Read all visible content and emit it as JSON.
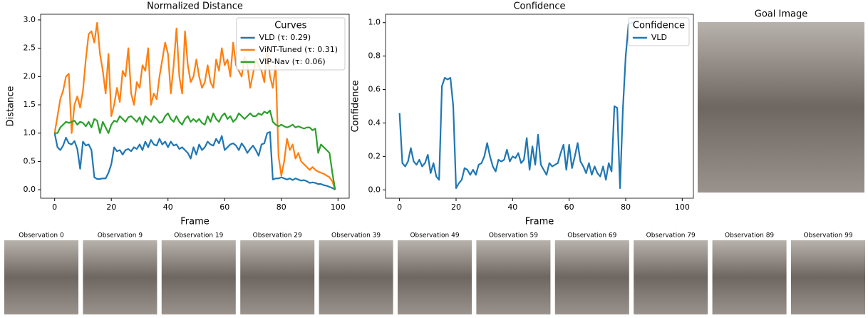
{
  "chart_data": [
    {
      "type": "line",
      "title": "Normalized Distance",
      "x_label": "Frame",
      "y_label": "Distance",
      "legend_title": "Curves",
      "legend": "upper right",
      "x": [
        0,
        1,
        2,
        3,
        4,
        5,
        6,
        7,
        8,
        9,
        10,
        11,
        12,
        13,
        14,
        15,
        16,
        17,
        18,
        19,
        20,
        21,
        22,
        23,
        24,
        25,
        26,
        27,
        28,
        29,
        30,
        31,
        32,
        33,
        34,
        35,
        36,
        37,
        38,
        39,
        40,
        41,
        42,
        43,
        44,
        45,
        46,
        47,
        48,
        49,
        50,
        51,
        52,
        53,
        54,
        55,
        56,
        57,
        58,
        59,
        60,
        61,
        62,
        63,
        64,
        65,
        66,
        67,
        68,
        69,
        70,
        71,
        72,
        73,
        74,
        75,
        76,
        77,
        78,
        79,
        80,
        81,
        82,
        83,
        84,
        85,
        86,
        87,
        88,
        89,
        90,
        91,
        92,
        93,
        94,
        95,
        96,
        97,
        98,
        99
      ],
      "series": [
        {
          "name": "VLD (τ: 0.29)",
          "color": "#1f77b4",
          "values": [
            1.0,
            0.75,
            0.7,
            0.78,
            0.92,
            0.82,
            0.8,
            0.86,
            0.72,
            0.37,
            0.85,
            0.78,
            0.8,
            0.7,
            0.22,
            0.19,
            0.19,
            0.2,
            0.2,
            0.3,
            0.45,
            0.75,
            0.68,
            0.7,
            0.62,
            0.7,
            0.72,
            0.68,
            0.75,
            0.72,
            0.8,
            0.7,
            0.85,
            0.75,
            0.88,
            0.8,
            0.78,
            0.9,
            0.8,
            0.85,
            0.75,
            0.85,
            0.78,
            0.8,
            0.72,
            0.75,
            0.7,
            0.65,
            0.55,
            0.75,
            0.62,
            0.8,
            0.7,
            0.75,
            0.85,
            0.8,
            0.78,
            0.9,
            0.82,
            0.95,
            0.7,
            0.75,
            0.8,
            0.82,
            0.78,
            0.7,
            0.82,
            0.75,
            0.65,
            0.72,
            0.78,
            0.7,
            0.6,
            0.8,
            0.82,
            1.0,
            1.02,
            0.18,
            0.2,
            0.2,
            0.22,
            0.2,
            0.18,
            0.2,
            0.17,
            0.2,
            0.18,
            0.16,
            0.17,
            0.15,
            0.12,
            0.13,
            0.12,
            0.1,
            0.1,
            0.08,
            0.07,
            0.05,
            0.03,
            0.0
          ]
        },
        {
          "name": "ViNT-Tuned (τ: 0.31)",
          "color": "#ff7f0e",
          "values": [
            1.0,
            1.3,
            1.6,
            1.75,
            2.0,
            2.05,
            1.0,
            1.5,
            1.65,
            1.45,
            1.75,
            2.3,
            2.75,
            2.8,
            2.6,
            2.95,
            2.4,
            2.1,
            1.7,
            2.4,
            1.3,
            1.5,
            1.8,
            1.55,
            2.1,
            2.0,
            2.5,
            1.7,
            1.5,
            1.9,
            1.8,
            2.2,
            2.1,
            2.5,
            1.5,
            1.7,
            1.6,
            2.0,
            2.3,
            2.6,
            2.4,
            1.7,
            2.2,
            2.85,
            2.0,
            1.7,
            2.8,
            2.2,
            1.9,
            2.0,
            2.3,
            2.0,
            1.8,
            1.9,
            2.2,
            1.9,
            1.8,
            2.3,
            2.1,
            2.5,
            2.2,
            2.3,
            2.0,
            2.6,
            2.2,
            2.1,
            2.0,
            2.35,
            2.2,
            1.8,
            2.05,
            2.3,
            2.2,
            2.1,
            1.9,
            2.5,
            2.0,
            1.8,
            2.2,
            0.6,
            0.25,
            0.5,
            0.9,
            0.7,
            0.8,
            0.55,
            0.65,
            0.5,
            0.45,
            0.4,
            0.35,
            0.4,
            0.35,
            0.32,
            0.3,
            0.28,
            0.25,
            0.22,
            0.15,
            0.0
          ]
        },
        {
          "name": "VIP-Nav (τ: 0.06)",
          "color": "#2ca02c",
          "values": [
            1.0,
            1.0,
            1.1,
            1.15,
            1.2,
            1.18,
            1.2,
            1.22,
            1.15,
            1.2,
            1.18,
            1.12,
            1.2,
            1.1,
            1.25,
            1.22,
            1.0,
            1.2,
            1.1,
            1.0,
            1.15,
            1.22,
            1.2,
            1.3,
            1.25,
            1.2,
            1.28,
            1.3,
            1.25,
            1.2,
            1.28,
            1.15,
            1.3,
            1.25,
            1.2,
            1.3,
            1.25,
            1.18,
            1.2,
            1.3,
            1.35,
            1.25,
            1.2,
            1.3,
            1.2,
            1.15,
            1.25,
            1.3,
            1.2,
            1.25,
            1.2,
            1.25,
            1.18,
            1.15,
            1.3,
            1.2,
            1.35,
            1.25,
            1.2,
            1.3,
            1.35,
            1.25,
            1.3,
            1.2,
            1.25,
            1.35,
            1.3,
            1.25,
            1.3,
            1.35,
            1.3,
            1.3,
            1.35,
            1.32,
            1.38,
            1.35,
            1.4,
            1.2,
            1.15,
            1.12,
            1.15,
            1.12,
            1.1,
            1.12,
            1.15,
            1.1,
            1.12,
            1.1,
            1.08,
            1.1,
            1.1,
            1.05,
            1.08,
            0.65,
            0.8,
            0.75,
            0.7,
            0.65,
            0.3,
            0.0
          ]
        }
      ],
      "xlim": [
        -4.95,
        103.95
      ],
      "xticks": [
        0,
        20,
        40,
        60,
        80,
        100
      ],
      "ylim": [
        -0.15,
        3.1
      ],
      "yticks": [
        {
          "value": 0,
          "label": "0.0"
        },
        {
          "value": 0.5,
          "label": "0.5"
        },
        {
          "value": 1,
          "label": "1.0"
        },
        {
          "value": 1.5,
          "label": "1.5"
        },
        {
          "value": 2,
          "label": "2.0"
        },
        {
          "value": 2.5,
          "label": "2.5"
        },
        {
          "value": 3,
          "label": "3.0"
        }
      ]
    },
    {
      "type": "line",
      "title": "Confidence",
      "x_label": "Frame",
      "y_label": "Confidence",
      "legend_title": "Confidence",
      "legend": "upper right",
      "x": [
        0,
        1,
        2,
        3,
        4,
        5,
        6,
        7,
        8,
        9,
        10,
        11,
        12,
        13,
        14,
        15,
        16,
        17,
        18,
        19,
        20,
        21,
        22,
        23,
        24,
        25,
        26,
        27,
        28,
        29,
        30,
        31,
        32,
        33,
        34,
        35,
        36,
        37,
        38,
        39,
        40,
        41,
        42,
        43,
        44,
        45,
        46,
        47,
        48,
        49,
        50,
        51,
        52,
        53,
        54,
        55,
        56,
        57,
        58,
        59,
        60,
        61,
        62,
        63,
        64,
        65,
        66,
        67,
        68,
        69,
        70,
        71,
        72,
        73,
        74,
        75,
        76,
        77,
        78,
        79,
        80,
        81,
        82,
        83
      ],
      "series": [
        {
          "name": "VLD",
          "color": "#1f77b4",
          "values": [
            0.46,
            0.16,
            0.14,
            0.17,
            0.25,
            0.17,
            0.15,
            0.18,
            0.14,
            0.16,
            0.21,
            0.1,
            0.16,
            0.08,
            0.06,
            0.62,
            0.67,
            0.66,
            0.67,
            0.5,
            0.01,
            0.04,
            0.06,
            0.13,
            0.12,
            0.09,
            0.12,
            0.09,
            0.15,
            0.16,
            0.2,
            0.28,
            0.2,
            0.14,
            0.11,
            0.18,
            0.17,
            0.18,
            0.24,
            0.17,
            0.2,
            0.19,
            0.22,
            0.16,
            0.18,
            0.31,
            0.12,
            0.26,
            0.15,
            0.33,
            0.15,
            0.12,
            0.09,
            0.16,
            0.14,
            0.15,
            0.16,
            0.22,
            0.27,
            0.12,
            0.27,
            0.13,
            0.2,
            0.28,
            0.17,
            0.14,
            0.1,
            0.16,
            0.09,
            0.14,
            0.1,
            0.08,
            0.14,
            0.06,
            0.16,
            0.11,
            0.5,
            0.49,
            0.01,
            0.48,
            0.8,
            0.99,
            1.0,
            1.0
          ]
        }
      ],
      "xlim": [
        -4.95,
        103.95
      ],
      "xticks": [
        0,
        20,
        40,
        60,
        80,
        100
      ],
      "ylim": [
        -0.05,
        1.05
      ],
      "yticks": [
        {
          "value": 0,
          "label": "0.0"
        },
        {
          "value": 0.2,
          "label": "0.2"
        },
        {
          "value": 0.4,
          "label": "0.4"
        },
        {
          "value": 0.6,
          "label": "0.6"
        },
        {
          "value": 0.8,
          "label": "0.8"
        },
        {
          "value": 1,
          "label": "1.0"
        }
      ]
    }
  ],
  "goal_image": {
    "title": "Goal Image"
  },
  "observations": [
    "Observation 0",
    "Observation 9",
    "Observation 19",
    "Observation 29",
    "Observation 39",
    "Observation 49",
    "Observation 59",
    "Observation 69",
    "Observation 79",
    "Observation 89",
    "Observation 99"
  ]
}
